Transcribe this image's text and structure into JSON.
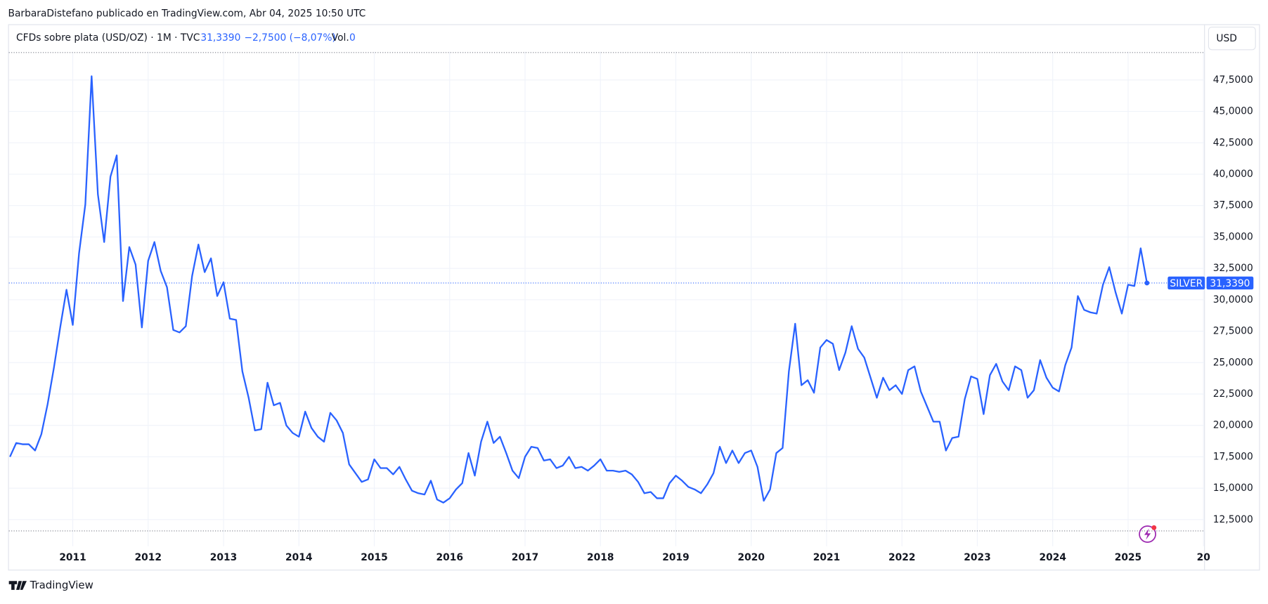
{
  "attribution": "BarbaraDistefano publicado en TradingView.com, Abr 04, 2025 10:50 UTC",
  "header": {
    "symbol": "CFDs sobre plata (USD/OZ) · 1M · TVC",
    "last": "31,3390",
    "change": "−2,7500 (−8,07%)",
    "vol_label": "Vol.",
    "vol": "0"
  },
  "currency": "USD",
  "footer": "TradingView",
  "chart_data": {
    "type": "line",
    "categories": [
      null,
      null,
      null,
      null,
      null,
      null,
      null,
      null,
      null,
      null,
      "2011",
      null,
      null,
      null,
      null,
      null,
      null,
      null,
      null,
      null,
      null,
      null,
      "2012",
      null,
      null,
      null,
      null,
      null,
      null,
      null,
      null,
      null,
      null,
      null,
      "2013",
      null,
      null,
      null,
      null,
      null,
      null,
      null,
      null,
      null,
      null,
      null,
      "2014",
      null,
      null,
      null,
      null,
      null,
      null,
      null,
      null,
      null,
      null,
      null,
      "2015",
      null,
      null,
      null,
      null,
      null,
      null,
      null,
      null,
      null,
      null,
      null,
      "2016",
      null,
      null,
      null,
      null,
      null,
      null,
      null,
      null,
      null,
      null,
      null,
      "2017",
      null,
      null,
      null,
      null,
      null,
      null,
      null,
      null,
      null,
      null,
      null,
      "2018",
      null,
      null,
      null,
      null,
      null,
      null,
      null,
      null,
      null,
      null,
      null,
      "2019",
      null,
      null,
      null,
      null,
      null,
      null,
      null,
      null,
      null,
      null,
      null,
      "2020",
      null,
      null,
      null,
      null,
      null,
      null,
      null,
      null,
      null,
      null,
      null,
      "2021",
      null,
      null,
      null,
      null,
      null,
      null,
      null,
      null,
      null,
      null,
      null,
      "2022",
      null,
      null,
      null,
      null,
      null,
      null,
      null,
      null,
      null,
      null,
      null,
      "2023",
      null,
      null,
      null,
      null,
      null,
      null,
      null,
      null,
      null,
      null,
      null,
      "2024",
      null,
      null,
      null,
      null,
      null,
      null,
      null,
      null,
      null,
      null,
      null,
      "2025",
      null,
      null,
      null,
      null,
      null,
      null,
      null,
      null,
      null,
      null,
      null,
      "20"
    ],
    "series": [
      {
        "name": "SILVER",
        "color": "#2962ff",
        "values": [
          17.5,
          18.6,
          18.5,
          18.5,
          18.0,
          19.3,
          21.7,
          24.6,
          27.8,
          30.8,
          28.0,
          33.7,
          37.6,
          47.8,
          38.4,
          34.6,
          39.8,
          41.5,
          29.9,
          34.2,
          32.8,
          27.8,
          33.1,
          34.6,
          32.3,
          31.0,
          27.6,
          27.4,
          27.9,
          31.9,
          34.4,
          32.2,
          33.3,
          30.3,
          31.4,
          28.5,
          28.4,
          24.3,
          22.2,
          19.6,
          19.7,
          23.4,
          21.6,
          21.8,
          20.0,
          19.4,
          19.1,
          21.1,
          19.8,
          19.1,
          18.7,
          21.0,
          20.4,
          19.4,
          16.9,
          16.2,
          15.5,
          15.7,
          17.3,
          16.6,
          16.6,
          16.1,
          16.7,
          15.7,
          14.8,
          14.6,
          14.5,
          15.6,
          14.1,
          13.85,
          14.2,
          14.9,
          15.4,
          17.8,
          16.0,
          18.7,
          20.3,
          18.6,
          19.1,
          17.8,
          16.4,
          15.8,
          17.5,
          18.3,
          18.2,
          17.2,
          17.3,
          16.6,
          16.8,
          17.5,
          16.6,
          16.7,
          16.4,
          16.8,
          17.3,
          16.4,
          16.4,
          16.3,
          16.4,
          16.1,
          15.5,
          14.6,
          14.7,
          14.2,
          14.2,
          15.4,
          16.0,
          15.6,
          15.1,
          14.9,
          14.6,
          15.3,
          16.2,
          18.3,
          17.0,
          18.0,
          17.0,
          17.8,
          18.0,
          16.7,
          14.0,
          14.9,
          17.8,
          18.2,
          24.3,
          28.1,
          23.2,
          23.6,
          22.6,
          26.2,
          26.8,
          26.5,
          24.4,
          25.8,
          27.9,
          26.1,
          25.4,
          23.8,
          22.2,
          23.8,
          22.8,
          23.2,
          22.5,
          24.4,
          24.7,
          22.7,
          21.5,
          20.3,
          20.3,
          18.0,
          19.0,
          19.1,
          22.1,
          23.9,
          23.7,
          20.9,
          24.0,
          24.9,
          23.5,
          22.8,
          24.7,
          24.4,
          22.2,
          22.8,
          25.2,
          23.8,
          23.0,
          22.7,
          24.8,
          26.2,
          30.3,
          29.2,
          29.0,
          28.9,
          31.2,
          32.6,
          30.6,
          28.9,
          31.2,
          31.1,
          34.1,
          31.339,
          null,
          null,
          null,
          null,
          null,
          null,
          null,
          null,
          null
        ]
      }
    ],
    "last_price": {
      "value": 31.339,
      "label": "31,3390"
    },
    "ylim": [
      10.38,
      49.75
    ],
    "yticks": [
      {
        "value": 12.5,
        "label": "12,5000"
      },
      {
        "value": 15,
        "label": "15,0000"
      },
      {
        "value": 17.5,
        "label": "17,5000"
      },
      {
        "value": 20,
        "label": "20,0000"
      },
      {
        "value": 22.5,
        "label": "22,5000"
      },
      {
        "value": 25,
        "label": "25,0000"
      },
      {
        "value": 27.5,
        "label": "27,5000"
      },
      {
        "value": 30,
        "label": "30,0000"
      },
      {
        "value": 32.5,
        "label": "32,5000"
      },
      {
        "value": 35,
        "label": "35,0000"
      },
      {
        "value": 37.5,
        "label": "37,5000"
      },
      {
        "value": 40,
        "label": "40,0000"
      },
      {
        "value": 42.5,
        "label": "42,5000"
      },
      {
        "value": 45,
        "label": "45,0000"
      },
      {
        "value": 47.5,
        "label": "47,5000"
      }
    ],
    "grid": true
  }
}
